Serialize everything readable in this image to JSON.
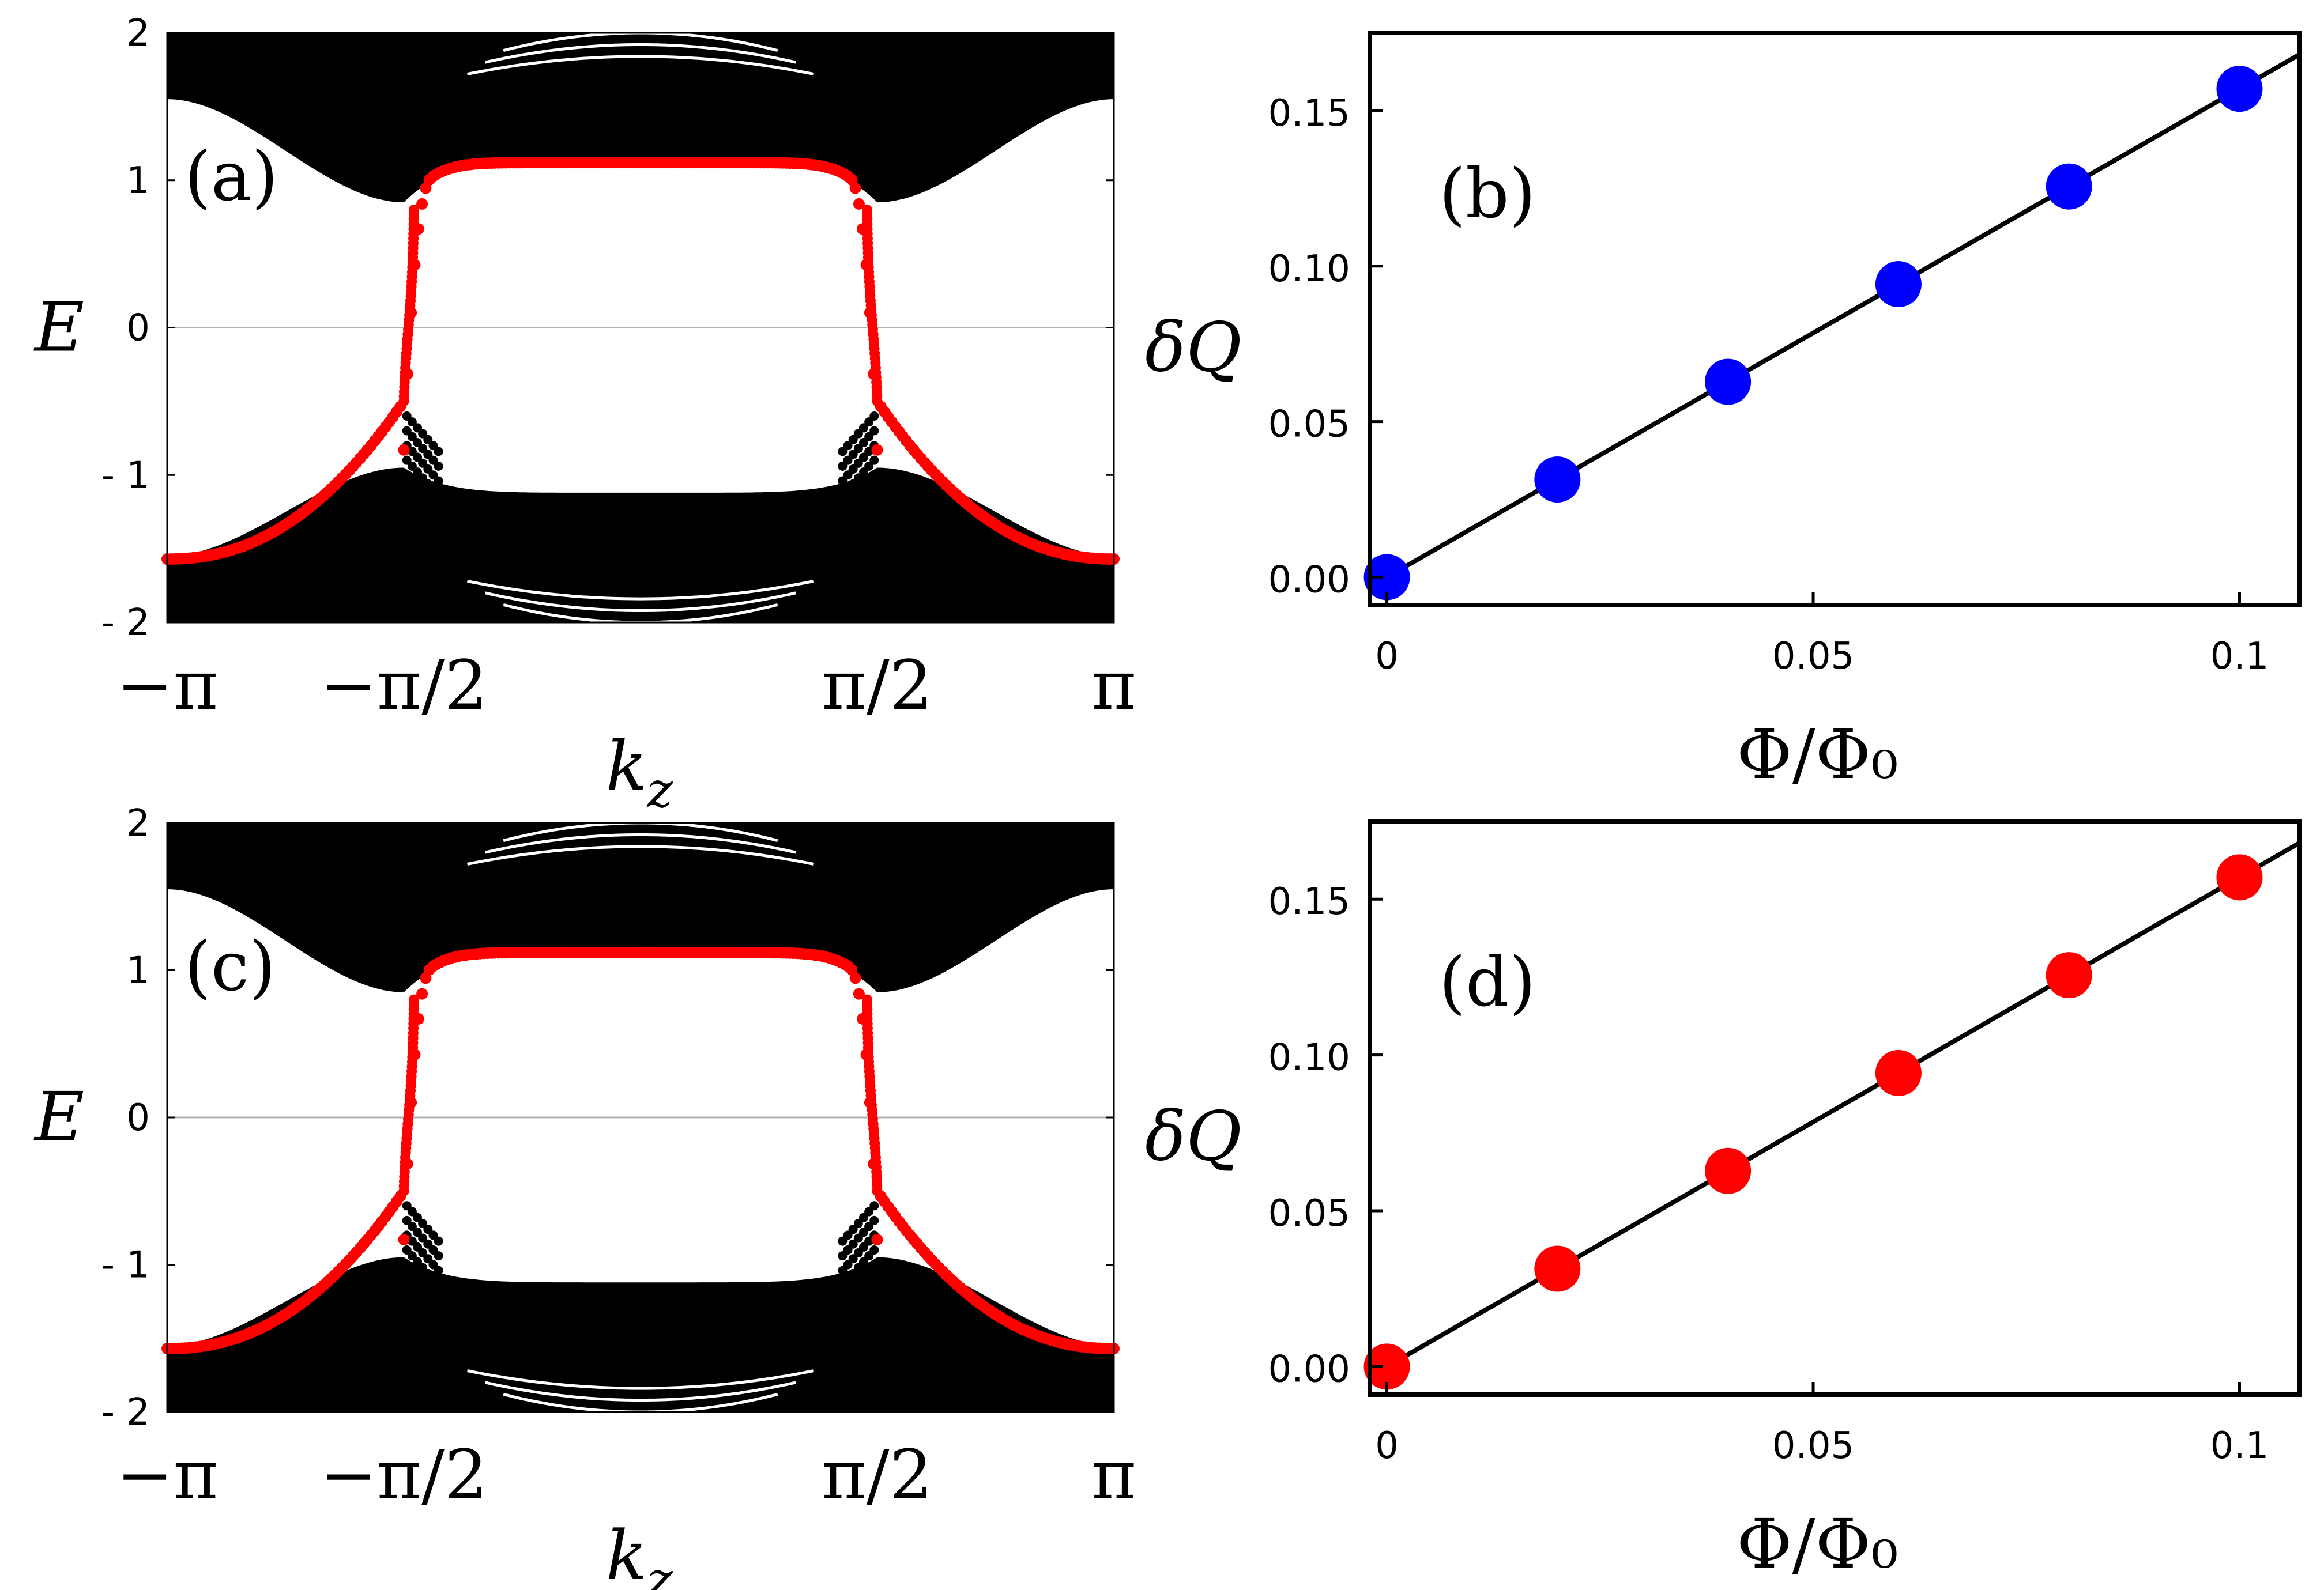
{
  "colors": {
    "band": "#000000",
    "edge_state": "#ff0000",
    "dot_b": "#0000ff",
    "dot_d": "#ff0000",
    "zero_line": "#b0b0b0",
    "fit_line": "#000000"
  },
  "chart_data": [
    {
      "id": "a",
      "type": "scatter",
      "panel_label": "(a)",
      "xlabel": "k_z",
      "ylabel": "E",
      "xlim": [
        -3.14159,
        3.14159
      ],
      "ylim": [
        -2,
        2
      ],
      "xticks": [
        -3.14159,
        -1.5708,
        1.5708,
        3.14159
      ],
      "xtick_labels": [
        "−π",
        "−π/2",
        "π/2",
        "π"
      ],
      "yticks": [
        -2,
        -1,
        0,
        1,
        2
      ],
      "ytick_labels": [
        "- 2",
        "- 1",
        "0",
        "1",
        "2"
      ],
      "series": [
        {
          "name": "bulk bands",
          "color": "#000000",
          "conduction_bottom": {
            "at_pi": 1.55,
            "at_half_pi": 0.85,
            "center": 1.12
          },
          "valence_top": {
            "at_pi": -1.55,
            "at_half_pi": -0.95,
            "center": -1.12
          }
        },
        {
          "name": "edge state",
          "color": "#ff0000",
          "plateau_E": 1.12,
          "end_E": -1.57
        }
      ]
    },
    {
      "id": "b",
      "type": "scatter",
      "panel_label": "(b)",
      "xlabel": "Φ/Φ₀",
      "ylabel": "δQ",
      "xlim": [
        -0.002,
        0.107
      ],
      "ylim": [
        -0.009,
        0.175
      ],
      "xticks": [
        0,
        0.05,
        0.1
      ],
      "xtick_labels": [
        "0",
        "0.05",
        "0.1"
      ],
      "yticks": [
        0,
        0.05,
        0.1,
        0.15
      ],
      "ytick_labels": [
        "0.00",
        "0.05",
        "0.10",
        "0.15"
      ],
      "series": [
        {
          "name": "data",
          "color": "#0000ff",
          "x": [
            0,
            0.02,
            0.04,
            0.06,
            0.08,
            0.1
          ],
          "y": [
            0.0,
            0.0314,
            0.0628,
            0.0942,
            0.1256,
            0.157
          ]
        },
        {
          "name": "fit",
          "color": "#000000",
          "slope": 1.57,
          "intercept": 0
        }
      ]
    },
    {
      "id": "c",
      "type": "scatter",
      "panel_label": "(c)",
      "xlabel": "k_z",
      "ylabel": "E",
      "xlim": [
        -3.14159,
        3.14159
      ],
      "ylim": [
        -2,
        2
      ],
      "xticks": [
        -3.14159,
        -1.5708,
        1.5708,
        3.14159
      ],
      "xtick_labels": [
        "−π",
        "−π/2",
        "π/2",
        "π"
      ],
      "yticks": [
        -2,
        -1,
        0,
        1,
        2
      ],
      "ytick_labels": [
        "- 2",
        "- 1",
        "0",
        "1",
        "2"
      ],
      "series": [
        {
          "name": "bulk bands",
          "color": "#000000",
          "conduction_bottom": {
            "at_pi": 1.55,
            "at_half_pi": 0.85,
            "center": 1.12
          },
          "valence_top": {
            "at_pi": -1.55,
            "at_half_pi": -0.95,
            "center": -1.12
          }
        },
        {
          "name": "edge state",
          "color": "#ff0000",
          "plateau_E": 1.12,
          "end_E": -1.57
        }
      ]
    },
    {
      "id": "d",
      "type": "scatter",
      "panel_label": "(d)",
      "xlabel": "Φ/Φ₀",
      "ylabel": "δQ",
      "xlim": [
        -0.002,
        0.107
      ],
      "ylim": [
        -0.009,
        0.175
      ],
      "xticks": [
        0,
        0.05,
        0.1
      ],
      "xtick_labels": [
        "0",
        "0.05",
        "0.1"
      ],
      "yticks": [
        0,
        0.05,
        0.1,
        0.15
      ],
      "ytick_labels": [
        "0.00",
        "0.05",
        "0.10",
        "0.15"
      ],
      "series": [
        {
          "name": "data",
          "color": "#ff0000",
          "x": [
            0,
            0.02,
            0.04,
            0.06,
            0.08,
            0.1
          ],
          "y": [
            0.0,
            0.0314,
            0.0628,
            0.0942,
            0.1256,
            0.157
          ]
        },
        {
          "name": "fit",
          "color": "#000000",
          "slope": 1.57,
          "intercept": 0
        }
      ]
    }
  ]
}
